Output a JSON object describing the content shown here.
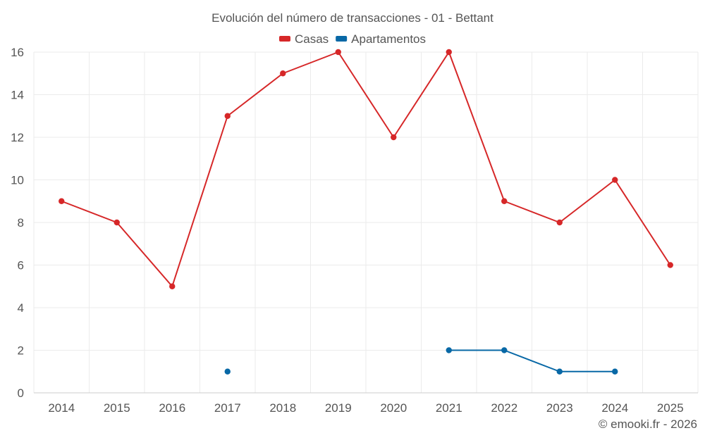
{
  "chart_data": {
    "type": "line",
    "title": "Evolución del número de transacciones - 01 - Bettant",
    "xlabel": "",
    "ylabel": "",
    "categories": [
      "2014",
      "2015",
      "2016",
      "2017",
      "2018",
      "2019",
      "2020",
      "2021",
      "2022",
      "2023",
      "2024",
      "2025"
    ],
    "ylim": [
      0,
      16
    ],
    "yticks": [
      0,
      2,
      4,
      6,
      8,
      10,
      12,
      14,
      16
    ],
    "grid": true,
    "legend_position": "top-center",
    "series": [
      {
        "name": "Casas",
        "color": "#d62728",
        "values": [
          9,
          8,
          5,
          13,
          15,
          16,
          12,
          16,
          9,
          8,
          10,
          6
        ]
      },
      {
        "name": "Apartamentos",
        "color": "#0868a6",
        "values": [
          null,
          null,
          null,
          1,
          null,
          null,
          null,
          2,
          2,
          1,
          1,
          null
        ]
      }
    ]
  },
  "footer": {
    "credit": "© emooki.fr - 2026"
  }
}
